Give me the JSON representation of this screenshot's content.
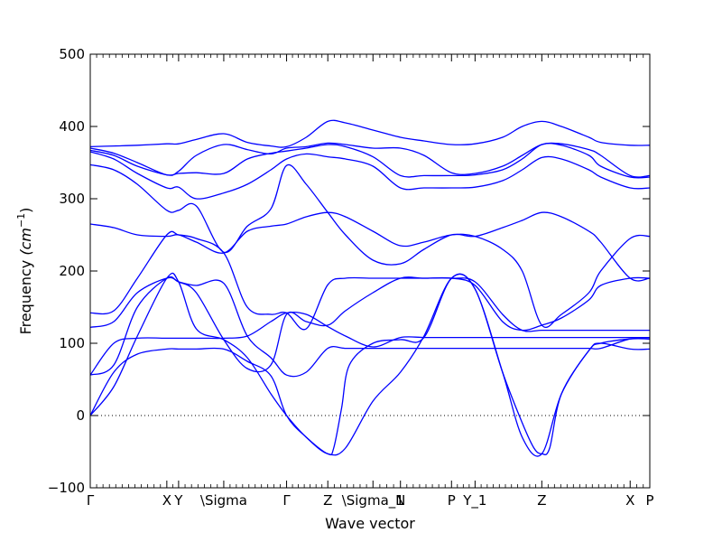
{
  "chart_data": {
    "type": "line",
    "xlabel": "Wave vector",
    "ylabel_text": "Frequency ",
    "ylabel_unit": "(cm",
    "ylabel_exp": "−1",
    "ylabel_close": ")",
    "ylim": [
      -100,
      500
    ],
    "yticks": [
      -100,
      0,
      100,
      200,
      300,
      400,
      500
    ],
    "grid": false,
    "zero_line": 0,
    "colors": {
      "band": "#0000ff",
      "zero_line": "#000000"
    },
    "xlim": [
      0,
      1.425
    ],
    "kpoints": [
      {
        "label": "Γ",
        "x": 0.0
      },
      {
        "label": "X",
        "x": 0.195
      },
      {
        "label": "Y",
        "x": 0.225
      },
      {
        "label": "\\Sigma",
        "x": 0.34
      },
      {
        "label": "Γ",
        "x": 0.5
      },
      {
        "label": "Z",
        "x": 0.605
      },
      {
        "label": "\\Sigma_1",
        "x": 0.72
      },
      {
        "label": "N",
        "x": 0.79
      },
      {
        "label": "P",
        "x": 0.92
      },
      {
        "label": "Y_1",
        "x": 0.98
      },
      {
        "label": "Z",
        "x": 1.15
      },
      {
        "label": "X",
        "x": 1.375
      },
      {
        "label": "P",
        "x": 1.425
      }
    ],
    "series": [
      {
        "x": [
          0,
          0.06,
          0.12,
          0.195,
          0.225,
          0.27,
          0.34,
          0.4,
          0.46,
          0.5,
          0.55,
          0.605,
          0.65,
          0.72,
          0.79,
          0.85,
          0.92,
          0.98,
          1.05,
          1.1,
          1.15,
          1.2,
          1.27,
          1.3,
          1.375,
          1.425
        ],
        "y": [
          0,
          40,
          110,
          190,
          185,
          120,
          105,
          80,
          30,
          0,
          -30,
          -53,
          -45,
          20,
          60,
          110,
          190,
          175,
          60,
          -30,
          -53,
          30,
          90,
          100,
          92,
          92
        ]
      },
      {
        "x": [
          0,
          0.06,
          0.12,
          0.195,
          0.225,
          0.27,
          0.34,
          0.4,
          0.46,
          0.5,
          0.55,
          0.605,
          0.62,
          0.64,
          0.66,
          0.72,
          0.79,
          0.85,
          0.92,
          0.98,
          1.05,
          1.1,
          1.13,
          1.15,
          1.17,
          1.2,
          1.27,
          1.3,
          1.375,
          1.425
        ],
        "y": [
          0,
          60,
          85,
          92,
          92,
          92,
          92,
          75,
          55,
          0,
          -30,
          -53,
          -45,
          10,
          70,
          100,
          105,
          108,
          190,
          175,
          60,
          -10,
          -45,
          -53,
          -45,
          30,
          90,
          100,
          106,
          106
        ]
      },
      {
        "x": [
          0,
          0.06,
          0.12,
          0.195,
          0.225,
          0.27,
          0.34,
          0.4,
          0.46,
          0.5,
          0.55,
          0.605,
          0.65,
          0.72,
          0.79,
          0.85,
          0.92,
          0.98,
          1.05,
          1.1,
          1.13,
          1.15,
          1.17,
          1.2,
          1.27,
          1.3,
          1.375,
          1.425
        ],
        "y": [
          56,
          70,
          150,
          190,
          185,
          180,
          183,
          110,
          80,
          56,
          60,
          93,
          93,
          93,
          93,
          93,
          93,
          93,
          93,
          93,
          93,
          93,
          93,
          93,
          93,
          93,
          106,
          106
        ]
      },
      {
        "x": [
          0,
          0.06,
          0.12,
          0.195,
          0.225,
          0.27,
          0.3,
          0.34,
          0.4,
          0.46,
          0.5,
          0.55,
          0.605,
          0.65,
          0.72,
          0.79,
          0.85,
          0.92,
          0.98,
          1.05,
          1.1,
          1.15,
          1.2,
          1.27,
          1.3,
          1.375,
          1.425
        ],
        "y": [
          56,
          100,
          107,
          107,
          107,
          107,
          107,
          107,
          110,
          130,
          142,
          140,
          123,
          110,
          95,
          108,
          108,
          108,
          108,
          108,
          108,
          108,
          108,
          108,
          108,
          108,
          108
        ]
      },
      {
        "x": [
          0,
          0.06,
          0.12,
          0.195,
          0.225,
          0.27,
          0.34,
          0.4,
          0.46,
          0.5,
          0.55,
          0.605,
          0.65,
          0.72,
          0.79,
          0.85,
          0.92,
          0.98,
          1.05,
          1.1,
          1.15,
          1.2,
          1.27,
          1.3,
          1.375,
          1.425
        ],
        "y": [
          122,
          130,
          170,
          190,
          185,
          170,
          105,
          65,
          70,
          140,
          130,
          125,
          145,
          170,
          190,
          190,
          190,
          185,
          140,
          118,
          118,
          118,
          118,
          118,
          118,
          118
        ]
      },
      {
        "x": [
          0,
          0.06,
          0.12,
          0.195,
          0.225,
          0.27,
          0.34,
          0.4,
          0.46,
          0.5,
          0.55,
          0.605,
          0.65,
          0.72,
          0.79,
          0.85,
          0.92,
          0.98,
          1.05,
          1.1,
          1.15,
          1.2,
          1.27,
          1.3,
          1.375,
          1.425
        ],
        "y": [
          142,
          145,
          190,
          250,
          250,
          245,
          225,
          150,
          140,
          142,
          120,
          181,
          190,
          190,
          190,
          190,
          190,
          180,
          130,
          118,
          125,
          135,
          160,
          180,
          190,
          190
        ]
      },
      {
        "x": [
          0,
          0.06,
          0.12,
          0.195,
          0.225,
          0.27,
          0.34,
          0.4,
          0.46,
          0.5,
          0.55,
          0.605,
          0.65,
          0.72,
          0.79,
          0.85,
          0.92,
          0.98,
          1.05,
          1.1,
          1.15,
          1.2,
          1.27,
          1.3,
          1.375,
          1.425
        ],
        "y": [
          265,
          260,
          250,
          248,
          250,
          240,
          225,
          255,
          262,
          265,
          275,
          281,
          275,
          255,
          235,
          240,
          250,
          248,
          230,
          200,
          125,
          140,
          170,
          200,
          245,
          248
        ]
      },
      {
        "x": [
          0,
          0.06,
          0.12,
          0.195,
          0.225,
          0.27,
          0.34,
          0.4,
          0.46,
          0.5,
          0.55,
          0.605,
          0.65,
          0.72,
          0.79,
          0.85,
          0.92,
          0.98,
          1.05,
          1.1,
          1.15,
          1.2,
          1.27,
          1.3,
          1.375,
          1.425
        ],
        "y": [
          347,
          340,
          320,
          284,
          284,
          290,
          226,
          262,
          286,
          346,
          320,
          281,
          250,
          215,
          210,
          230,
          250,
          248,
          260,
          270,
          281,
          275,
          255,
          240,
          190,
          190
        ]
      },
      {
        "x": [
          0,
          0.06,
          0.12,
          0.195,
          0.225,
          0.27,
          0.34,
          0.4,
          0.46,
          0.5,
          0.55,
          0.605,
          0.65,
          0.72,
          0.79,
          0.85,
          0.92,
          0.98,
          1.05,
          1.1,
          1.15,
          1.2,
          1.27,
          1.3,
          1.375,
          1.425
        ],
        "y": [
          365,
          355,
          335,
          315,
          316,
          300,
          308,
          320,
          340,
          355,
          362,
          358,
          355,
          345,
          315,
          315,
          315,
          316,
          325,
          340,
          357,
          355,
          340,
          330,
          315,
          315
        ]
      },
      {
        "x": [
          0,
          0.06,
          0.12,
          0.195,
          0.225,
          0.27,
          0.34,
          0.4,
          0.46,
          0.5,
          0.55,
          0.605,
          0.65,
          0.72,
          0.79,
          0.85,
          0.92,
          0.98,
          1.05,
          1.1,
          1.15,
          1.2,
          1.27,
          1.3,
          1.375,
          1.425
        ],
        "y": [
          367,
          360,
          345,
          333,
          335,
          336,
          335,
          355,
          363,
          366,
          370,
          375,
          372,
          358,
          332,
          332,
          332,
          333,
          340,
          355,
          375,
          374,
          360,
          345,
          330,
          330
        ]
      },
      {
        "x": [
          0,
          0.06,
          0.12,
          0.195,
          0.225,
          0.27,
          0.34,
          0.4,
          0.46,
          0.5,
          0.55,
          0.605,
          0.65,
          0.72,
          0.79,
          0.85,
          0.92,
          0.98,
          1.05,
          1.1,
          1.15,
          1.2,
          1.27,
          1.3,
          1.375,
          1.425
        ],
        "y": [
          370,
          363,
          350,
          333,
          338,
          360,
          375,
          368,
          362,
          370,
          372,
          377,
          375,
          370,
          370,
          360,
          336,
          335,
          345,
          360,
          375,
          376,
          368,
          360,
          332,
          332
        ]
      },
      {
        "x": [
          0,
          0.06,
          0.12,
          0.195,
          0.225,
          0.27,
          0.34,
          0.4,
          0.46,
          0.5,
          0.55,
          0.605,
          0.65,
          0.72,
          0.79,
          0.85,
          0.92,
          0.98,
          1.05,
          1.1,
          1.15,
          1.2,
          1.27,
          1.3,
          1.375,
          1.425
        ],
        "y": [
          372,
          373,
          374,
          376,
          376,
          382,
          390,
          378,
          373,
          372,
          385,
          407,
          405,
          395,
          385,
          380,
          375,
          376,
          385,
          400,
          407,
          400,
          385,
          378,
          374,
          374
        ]
      }
    ]
  }
}
